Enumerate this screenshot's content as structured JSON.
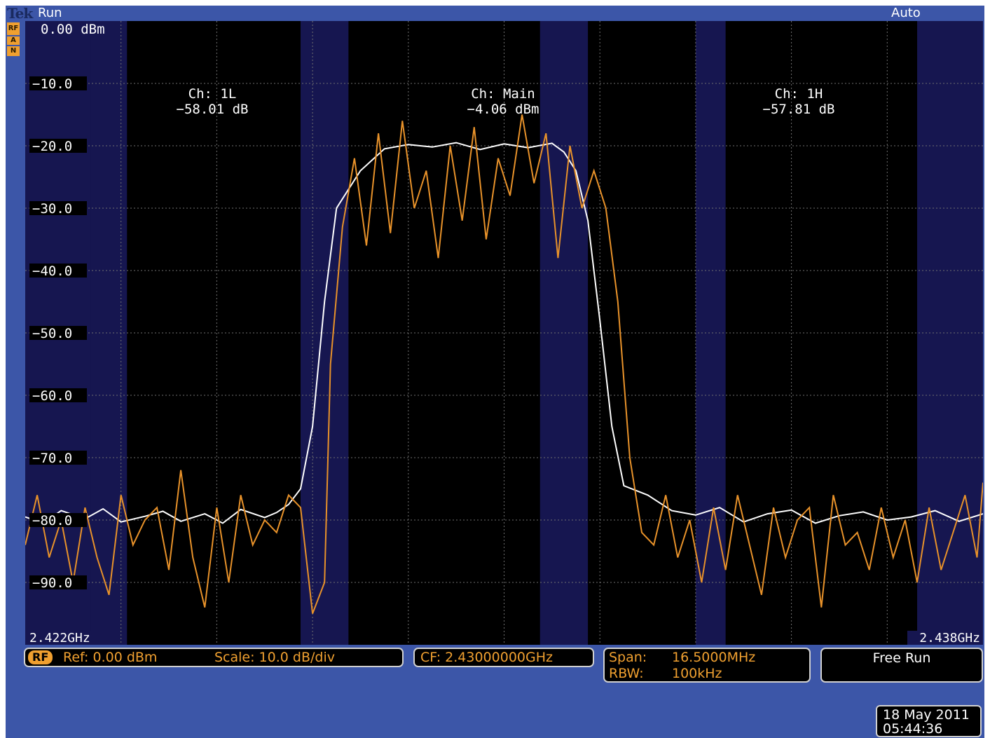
{
  "header": {
    "brand": "Tek",
    "run_state": "Run",
    "trigger_mode": "Auto",
    "side_badges": [
      "RF",
      "A",
      "N"
    ]
  },
  "display": {
    "ref_level_label": "0.00 dBm",
    "start_freq": "2.422GHz",
    "stop_freq": "2.438GHz",
    "y_tick_labels": [
      "−10.0",
      "−20.0",
      "−30.0",
      "−40.0",
      "−50.0",
      "−60.0",
      "−70.0",
      "−80.0",
      "−90.0"
    ]
  },
  "channels": [
    {
      "name": "Ch: 1L",
      "value": "−58.01 dB"
    },
    {
      "name": "Ch: Main",
      "value": "−4.06 dBm"
    },
    {
      "name": "Ch: 1H",
      "value": "−57.81 dB"
    }
  ],
  "readouts": {
    "rf_badge": "RF",
    "ref": "Ref: 0.00 dBm",
    "scale": "Scale: 10.0 dB/div",
    "cf": "CF: 2.43000000GHz",
    "span_label": "Span:",
    "span_value": "16.5000MHz",
    "rbw_label": "RBW:",
    "rbw_value": "100kHz",
    "trigger": "Free Run",
    "date": "18 May 2011",
    "time": "05:44:36"
  },
  "colors": {
    "background": "#3c56a8",
    "plot_bg": "#000000",
    "channel_band": "#161650",
    "graticule": "#707070",
    "trace_white": "#ffffff",
    "trace_orange": "#e8922a",
    "label_orange": "#f0a030"
  },
  "chart_data": {
    "type": "line",
    "xlim": [
      2.422,
      2.438
    ],
    "ylim": [
      -100,
      0
    ],
    "grid": true,
    "channel_bands_ghz": [
      [
        2.4231,
        2.4237
      ],
      [
        2.4266,
        2.4274
      ],
      [
        2.4306,
        2.4314
      ],
      [
        2.4332,
        2.4337
      ]
    ],
    "series": [
      {
        "x": [
          2.422,
          2.4223,
          2.4226,
          2.423,
          2.4233,
          2.4236,
          2.424,
          2.4243,
          2.4246,
          2.425,
          2.4253,
          2.4256,
          2.426,
          2.4262,
          2.4264,
          2.4266,
          2.4268,
          2.427,
          2.4272,
          2.4276,
          2.428,
          2.4284,
          2.4288,
          2.4292,
          2.4296,
          2.43,
          2.4304,
          2.4308,
          2.431,
          2.4312,
          2.4314,
          2.4316,
          2.4318,
          2.432,
          2.4324,
          2.4328,
          2.4332,
          2.4336,
          2.434,
          2.4344,
          2.4348,
          2.4352,
          2.4356,
          2.436,
          2.4364,
          2.4368,
          2.4372,
          2.4376,
          2.438
        ],
        "y": [
          -79.5,
          -80.5,
          -78.5,
          -79.8,
          -78.2,
          -80.3,
          -79.4,
          -78.6,
          -80.2,
          -79.0,
          -80.5,
          -78.3,
          -79.6,
          -78.8,
          -77.5,
          -75.0,
          -65.0,
          -45.0,
          -30.0,
          -24.0,
          -20.5,
          -19.8,
          -20.2,
          -19.5,
          -20.6,
          -19.7,
          -20.3,
          -19.6,
          -21.0,
          -24.0,
          -32.0,
          -48.0,
          -65.0,
          -74.5,
          -76.0,
          -78.5,
          -79.2,
          -78.0,
          -80.3,
          -79.0,
          -78.4,
          -80.5,
          -79.3,
          -78.7,
          -80.0,
          -79.5,
          -78.5,
          -80.2,
          -79.0
        ]
      },
      {
        "x": [
          2.422,
          2.4222,
          2.4224,
          2.4226,
          2.4228,
          2.423,
          2.4232,
          2.4234,
          2.4236,
          2.4238,
          2.424,
          2.4242,
          2.4244,
          2.4246,
          2.4248,
          2.425,
          2.4252,
          2.4254,
          2.4256,
          2.4258,
          2.426,
          2.4262,
          2.4264,
          2.4266,
          2.4268,
          2.427,
          2.4271,
          2.4273,
          2.4275,
          2.4277,
          2.4279,
          2.4281,
          2.4283,
          2.4285,
          2.4287,
          2.4289,
          2.4291,
          2.4293,
          2.4295,
          2.4297,
          2.4299,
          2.4301,
          2.4303,
          2.4305,
          2.4307,
          2.4309,
          2.4311,
          2.4313,
          2.4315,
          2.4317,
          2.4319,
          2.4321,
          2.4323,
          2.4325,
          2.4327,
          2.4329,
          2.4331,
          2.4333,
          2.4335,
          2.4337,
          2.4339,
          2.4341,
          2.4343,
          2.4345,
          2.4347,
          2.4349,
          2.4351,
          2.4353,
          2.4355,
          2.4357,
          2.4359,
          2.4361,
          2.4363,
          2.4365,
          2.4367,
          2.4369,
          2.4371,
          2.4373,
          2.4375,
          2.4377,
          2.4379,
          2.438
        ],
        "y": [
          -84,
          -76,
          -86,
          -80,
          -90,
          -78,
          -86,
          -92,
          -76,
          -84,
          -80,
          -78,
          -88,
          -72,
          -86,
          -94,
          -78,
          -90,
          -76,
          -84,
          -80,
          -82,
          -76,
          -78,
          -95,
          -90,
          -55,
          -33,
          -22,
          -36,
          -18,
          -34,
          -16,
          -30,
          -24,
          -38,
          -20,
          -32,
          -17,
          -35,
          -22,
          -28,
          -15,
          -26,
          -18,
          -38,
          -20,
          -30,
          -24,
          -30,
          -45,
          -70,
          -82,
          -84,
          -76,
          -86,
          -80,
          -90,
          -78,
          -88,
          -76,
          -84,
          -92,
          -78,
          -86,
          -80,
          -78,
          -94,
          -76,
          -84,
          -82,
          -88,
          -78,
          -86,
          -80,
          -90,
          -78,
          -88,
          -82,
          -76,
          -86,
          -74
        ]
      }
    ]
  }
}
